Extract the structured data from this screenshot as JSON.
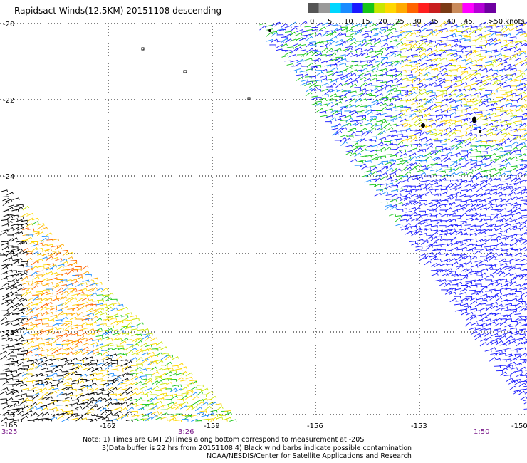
{
  "title": "Rapidsact Winds(12.5KM) 20151108 descending",
  "colorbar": {
    "labels": [
      "0",
      "5",
      "10",
      "15",
      "20",
      "25",
      "30",
      "35",
      "40",
      "45",
      ">50 knots"
    ],
    "colors": [
      "#555555",
      "#9a9a9a",
      "#00d7ff",
      "#1a8cff",
      "#1a1aff",
      "#17c517",
      "#c8e600",
      "#ffd700",
      "#ffaa00",
      "#ff6400",
      "#ff1e1e",
      "#c81e1e",
      "#7a3a14",
      "#c98a5a",
      "#ff00ff",
      "#b400d6",
      "#6e00a0"
    ]
  },
  "map": {
    "lat_labels": [
      "-20",
      "-22",
      "-24",
      "-26",
      "-28",
      "-30"
    ],
    "lon_labels": [
      "-165",
      "-162",
      "-159",
      "-156",
      "-153",
      "-150"
    ],
    "time_labels": [
      "3:25",
      "3:26",
      "1:50"
    ]
  },
  "notes": [
    "Note: 1) Times are GMT 2)Times along bottom correspond to measurement at -20S",
    "3)Data buffer is 22 hrs from 20151108 4) Black wind barbs indicate possible contamination",
    "NOAA/NESDIS/Center for Satellite Applications and Research"
  ]
}
